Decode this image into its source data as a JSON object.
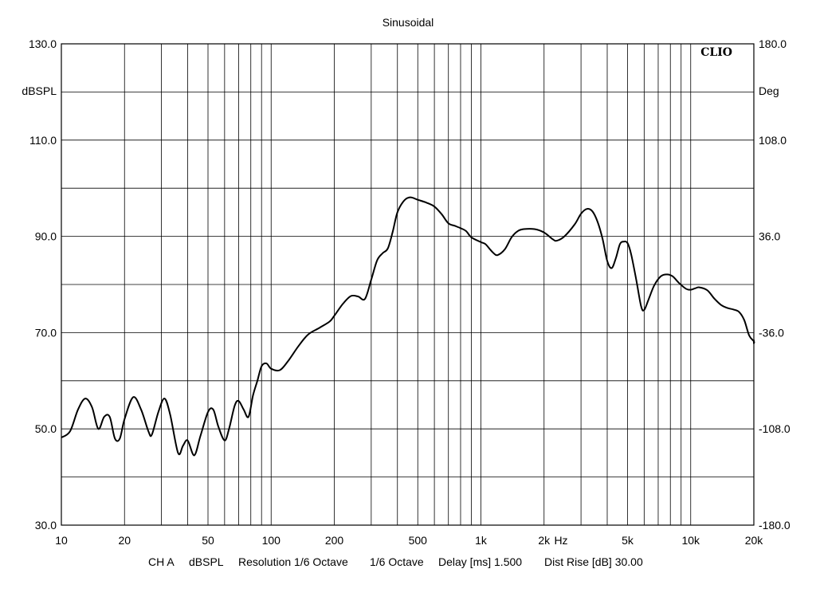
{
  "chart_data": {
    "type": "line",
    "title": "Sinusoidal",
    "brand": "CLIO",
    "x_scale": "log",
    "xlim": [
      10,
      20000
    ],
    "ylim": [
      30,
      130
    ],
    "y2lim": [
      -180,
      180
    ],
    "ylabel": "dBSPL",
    "y2label": "Deg",
    "xunit": "Hz",
    "grid": true,
    "x_ticks": [
      {
        "value": 10,
        "label": "10"
      },
      {
        "value": 20,
        "label": "20"
      },
      {
        "value": 50,
        "label": "50"
      },
      {
        "value": 100,
        "label": "100"
      },
      {
        "value": 200,
        "label": "200"
      },
      {
        "value": 500,
        "label": "500"
      },
      {
        "value": 1000,
        "label": "1k"
      },
      {
        "value": 2000,
        "label": "2k"
      },
      {
        "value": 5000,
        "label": "5k"
      },
      {
        "value": 10000,
        "label": "10k"
      },
      {
        "value": 20000,
        "label": "20k"
      }
    ],
    "y_ticks": [
      {
        "value": 130,
        "label": "130.0"
      },
      {
        "value": 110,
        "label": "110.0"
      },
      {
        "value": 90,
        "label": "90.0"
      },
      {
        "value": 70,
        "label": "70.0"
      },
      {
        "value": 50,
        "label": "50.0"
      },
      {
        "value": 30,
        "label": "30.0"
      }
    ],
    "y2_ticks": [
      {
        "value": 180,
        "label": "180.0"
      },
      {
        "value": 108,
        "label": "108.0"
      },
      {
        "value": 36,
        "label": "36.0"
      },
      {
        "value": -36,
        "label": "-36.0"
      },
      {
        "value": -108,
        "label": "-108.0"
      },
      {
        "value": -180,
        "label": "-180.0"
      }
    ],
    "series": [
      {
        "color": "#000000",
        "points": [
          [
            10,
            48.2
          ],
          [
            11,
            49.5
          ],
          [
            12,
            54
          ],
          [
            13,
            56.3
          ],
          [
            14,
            54.5
          ],
          [
            15,
            50
          ],
          [
            16,
            52.5
          ],
          [
            17,
            52.5
          ],
          [
            18,
            48
          ],
          [
            19,
            48
          ],
          [
            20,
            52
          ],
          [
            22,
            56.6
          ],
          [
            24,
            54
          ],
          [
            26,
            49.5
          ],
          [
            27,
            48.8
          ],
          [
            29,
            53.5
          ],
          [
            31,
            56.3
          ],
          [
            33,
            53
          ],
          [
            36,
            45
          ],
          [
            38,
            46.5
          ],
          [
            40,
            47.6
          ],
          [
            43,
            44.5
          ],
          [
            46,
            48.5
          ],
          [
            50,
            53.5
          ],
          [
            53,
            54
          ],
          [
            56,
            50.5
          ],
          [
            60,
            47.6
          ],
          [
            63,
            50
          ],
          [
            67,
            54.8
          ],
          [
            70,
            55.8
          ],
          [
            74,
            54
          ],
          [
            78,
            52.5
          ],
          [
            82,
            57
          ],
          [
            86,
            60
          ],
          [
            90,
            63
          ],
          [
            95,
            63.6
          ],
          [
            100,
            62.5
          ],
          [
            110,
            62.2
          ],
          [
            120,
            64
          ],
          [
            135,
            67.2
          ],
          [
            150,
            69.6
          ],
          [
            170,
            71
          ],
          [
            190,
            72.3
          ],
          [
            200,
            73.5
          ],
          [
            220,
            76
          ],
          [
            240,
            77.6
          ],
          [
            260,
            77.5
          ],
          [
            280,
            77
          ],
          [
            300,
            81
          ],
          [
            320,
            85
          ],
          [
            340,
            86.5
          ],
          [
            360,
            87.5
          ],
          [
            380,
            91
          ],
          [
            400,
            95
          ],
          [
            430,
            97.4
          ],
          [
            460,
            98.1
          ],
          [
            500,
            97.6
          ],
          [
            550,
            97
          ],
          [
            600,
            96.2
          ],
          [
            650,
            94.6
          ],
          [
            700,
            92.7
          ],
          [
            750,
            92.2
          ],
          [
            800,
            91.7
          ],
          [
            850,
            91.1
          ],
          [
            900,
            89.8
          ],
          [
            1000,
            88.8
          ],
          [
            1050,
            88.4
          ],
          [
            1100,
            87.4
          ],
          [
            1150,
            86.5
          ],
          [
            1200,
            86.1
          ],
          [
            1300,
            87.3
          ],
          [
            1400,
            89.8
          ],
          [
            1500,
            91.1
          ],
          [
            1600,
            91.5
          ],
          [
            1800,
            91.5
          ],
          [
            2000,
            90.8
          ],
          [
            2200,
            89.4
          ],
          [
            2300,
            89.1
          ],
          [
            2500,
            90
          ],
          [
            2800,
            92.5
          ],
          [
            3000,
            94.7
          ],
          [
            3200,
            95.7
          ],
          [
            3400,
            95.2
          ],
          [
            3600,
            93
          ],
          [
            3800,
            89.5
          ],
          [
            4000,
            84.9
          ],
          [
            4200,
            83.4
          ],
          [
            4400,
            85.5
          ],
          [
            4600,
            88.4
          ],
          [
            4800,
            88.9
          ],
          [
            5000,
            88.6
          ],
          [
            5200,
            86.3
          ],
          [
            5500,
            81
          ],
          [
            5800,
            75.5
          ],
          [
            6000,
            74.7
          ],
          [
            6300,
            76.9
          ],
          [
            6700,
            79.8
          ],
          [
            7200,
            81.7
          ],
          [
            7700,
            82.1
          ],
          [
            8200,
            81.7
          ],
          [
            8800,
            80.3
          ],
          [
            9500,
            79.1
          ],
          [
            10000,
            78.9
          ],
          [
            10500,
            79.2
          ],
          [
            11000,
            79.4
          ],
          [
            12000,
            78.8
          ],
          [
            13000,
            77
          ],
          [
            14000,
            75.7
          ],
          [
            15000,
            75.1
          ],
          [
            16000,
            74.8
          ],
          [
            17000,
            74.3
          ],
          [
            18000,
            72.6
          ],
          [
            19000,
            69.4
          ],
          [
            20000,
            68.2
          ],
          [
            21000,
            67.8
          ],
          [
            22000,
            68.1
          ],
          [
            23000,
            68.5
          ]
        ]
      }
    ]
  },
  "footer": {
    "channel": "CH A",
    "unit": "dBSPL",
    "resolution": "Resolution 1/6 Octave",
    "smoothing": "1/6 Octave",
    "delay": "Delay [ms] 1.500",
    "dist_rise": "Dist Rise [dB] 30.00"
  }
}
